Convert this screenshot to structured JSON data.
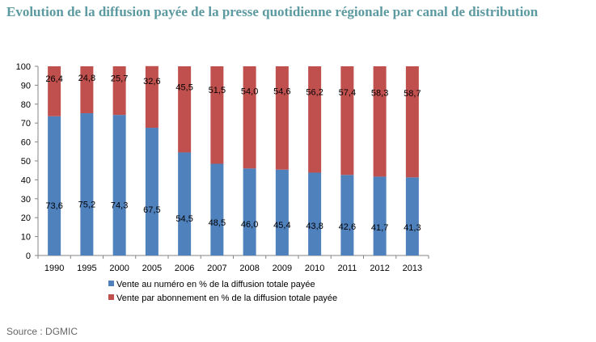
{
  "page": {
    "title": "Evolution de la diffusion payée de la presse quotidienne régionale par canal de distribution",
    "source": "Source : DGMIC"
  },
  "colors": {
    "title": "#5b9aa0",
    "series_blue": "#4f81bd",
    "series_red": "#c0504d",
    "gridline": "#868686"
  },
  "chart_data": {
    "type": "bar",
    "stacked": true,
    "title": "",
    "xlabel": "",
    "ylabel": "",
    "ylim": [
      0,
      100
    ],
    "yticks": [
      "0",
      "10",
      "20",
      "30",
      "40",
      "50",
      "60",
      "70",
      "80",
      "90",
      "100"
    ],
    "categories": [
      "1990",
      "1995",
      "2000",
      "2005",
      "2006",
      "2007",
      "2008",
      "2009",
      "2010",
      "2011",
      "2012",
      "2013"
    ],
    "series": [
      {
        "name": "Vente au numéro en % de la diffusion totale payée",
        "color": "#4f81bd",
        "values": [
          73.6,
          75.2,
          74.3,
          67.5,
          54.5,
          48.5,
          46.0,
          45.4,
          43.8,
          42.6,
          41.7,
          41.3
        ],
        "labels": [
          "73,6",
          "75,2",
          "74,3",
          "67,5",
          "54,5",
          "48,5",
          "46,0",
          "45,4",
          "43,8",
          "42,6",
          "41,7",
          "41,3"
        ]
      },
      {
        "name": "Vente par abonnement en % de la diffusion totale payée",
        "color": "#c0504d",
        "values": [
          26.4,
          24.8,
          25.7,
          32.6,
          45.5,
          51.5,
          54.0,
          54.6,
          56.2,
          57.4,
          58.3,
          58.7
        ],
        "labels": [
          "26,4",
          "24,8",
          "25,7",
          "32,6",
          "45,5",
          "51,5",
          "54,0",
          "54,6",
          "56,2",
          "57,4",
          "58,3",
          "58,7"
        ]
      }
    ],
    "grid": false,
    "legend_position": "bottom"
  }
}
